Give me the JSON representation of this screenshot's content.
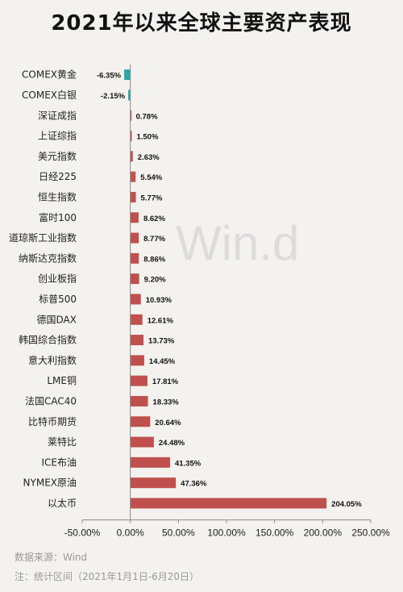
{
  "title": "2021年以来全球主要资产表现",
  "watermark": "Win.d",
  "source": "数据来源：Wind",
  "note": "注：统计区间（2021年1月1日-6月20日）",
  "colors": {
    "positive": "#c0504d",
    "negative": "#2aa7a4",
    "axis": "#555555",
    "background": "#f3f2ee"
  },
  "chart_data": {
    "type": "bar",
    "orientation": "horizontal",
    "categories": [
      "COMEX黄金",
      "COMEX白银",
      "深证成指",
      "上证综指",
      "美元指数",
      "日经225",
      "恒生指数",
      "富时100",
      "道琼斯工业指数",
      "纳斯达克指数",
      "创业板指",
      "标普500",
      "德国DAX",
      "韩国综合指数",
      "意大利指数",
      "LME铜",
      "法国CAC40",
      "比特币期货",
      "莱特比",
      "ICE布油",
      "NYMEX原油",
      "以太币"
    ],
    "values": [
      -6.35,
      -2.15,
      0.78,
      1.5,
      2.63,
      5.54,
      5.77,
      8.62,
      8.77,
      8.86,
      9.2,
      10.93,
      12.61,
      13.73,
      14.45,
      17.81,
      18.33,
      20.64,
      24.48,
      41.35,
      47.36,
      204.05
    ],
    "value_labels": [
      "-6.35%",
      "-2.15%",
      "0.78%",
      "1.50%",
      "2.63%",
      "5.54%",
      "5.77%",
      "8.62%",
      "8.77%",
      "8.86%",
      "9.20%",
      "10.93%",
      "12.61%",
      "13.73%",
      "14.45%",
      "17.81%",
      "18.33%",
      "20.64%",
      "24.48%",
      "41.35%",
      "47.36%",
      "204.05%"
    ],
    "xlim": [
      -50,
      250
    ],
    "xticks": [
      -50,
      0,
      50,
      100,
      150,
      200,
      250
    ],
    "xtick_labels": [
      "-50.00%",
      "0.00%",
      "50.00%",
      "100.00%",
      "150.00%",
      "200.00%",
      "250.00%"
    ],
    "grid": false,
    "legend": "none"
  }
}
